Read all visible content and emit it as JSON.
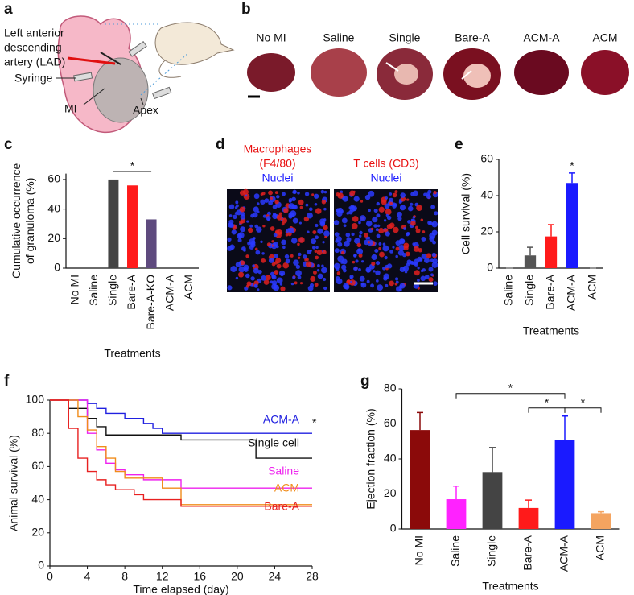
{
  "panel_labels": [
    "a",
    "b",
    "c",
    "d",
    "e",
    "f",
    "g"
  ],
  "panel_a": {
    "lad_lines": [
      "Left anterior",
      "descending",
      "artery (LAD)"
    ],
    "syringe": "Syringe",
    "mi": "MI",
    "apex": "Apex"
  },
  "panel_b": {
    "labels": [
      "No MI",
      "Saline",
      "Single",
      "Bare-A",
      "ACM-A",
      "ACM"
    ]
  },
  "panel_d": {
    "left": [
      "Macrophages",
      "(F4/80)",
      "Nuclei"
    ],
    "right": [
      "T cells (CD3)",
      "Nuclei"
    ]
  },
  "chart_data": [
    {
      "type": "bar",
      "ylabel": [
        "Cumulative occurrence",
        "of granuloma (%)"
      ],
      "xlabel": "Treatments",
      "categories": [
        "No MI",
        "Saline",
        "Single",
        "Bare-A",
        "Bare-A-KO",
        "ACM-A",
        "ACM"
      ],
      "values": [
        0,
        0,
        60,
        56,
        33,
        0,
        0
      ],
      "colors": [
        "#444444",
        "#444444",
        "#444444",
        "#ff1a1a",
        "#5e4a7e",
        "#444444",
        "#444444"
      ],
      "ylim": [
        0,
        64
      ],
      "yticks": [
        0,
        20,
        40,
        60
      ],
      "annotations": [
        {
          "between": [
            "Single",
            "Bare-A-KO"
          ],
          "text": "*"
        }
      ]
    },
    {
      "type": "bar",
      "ylabel": [
        "Cell survival (%)"
      ],
      "xlabel": "Treatments",
      "categories": [
        "Saline",
        "Single",
        "Bare-A",
        "ACM-A",
        "ACM"
      ],
      "values": [
        0,
        7,
        17.5,
        47,
        0
      ],
      "errors": [
        0,
        4.5,
        6.5,
        5.5,
        0
      ],
      "colors": [
        "#888888",
        "#555555",
        "#ff1a1a",
        "#1a1aff",
        "#888888"
      ],
      "ylim": [
        0,
        60
      ],
      "yticks": [
        0,
        20,
        40,
        60
      ],
      "annotations": [
        {
          "at": "ACM-A",
          "text": "*"
        }
      ]
    },
    {
      "type": "line",
      "step": true,
      "ylabel": [
        "Animal survival (%)"
      ],
      "xlabel": "Time elapsed (day)",
      "xlim": [
        0,
        28
      ],
      "xticks": [
        0,
        4,
        8,
        12,
        16,
        20,
        24,
        28
      ],
      "ylim": [
        0,
        100
      ],
      "yticks": [
        0,
        20,
        40,
        60,
        80,
        100
      ],
      "series": [
        {
          "name": "ACM-A",
          "color": "#2020e0",
          "x": [
            0,
            3,
            4,
            5,
            6,
            8,
            10,
            11,
            12,
            28
          ],
          "values": [
            100,
            100,
            98,
            95,
            92,
            89,
            86,
            83,
            80,
            80
          ]
        },
        {
          "name": "Single cell",
          "color": "#111111",
          "x": [
            0,
            2,
            4,
            5,
            6,
            14,
            22,
            28
          ],
          "values": [
            100,
            95,
            89,
            84,
            79,
            76,
            65,
            65
          ]
        },
        {
          "name": "Saline",
          "color": "#ee22ee",
          "x": [
            0,
            4,
            5,
            6,
            7,
            8,
            10,
            14,
            28
          ],
          "values": [
            100,
            80,
            70,
            62,
            58,
            55,
            52,
            47,
            47
          ]
        },
        {
          "name": "ACM",
          "color": "#f08c1a",
          "x": [
            0,
            3,
            4,
            5,
            6,
            7,
            8,
            12,
            14,
            28
          ],
          "values": [
            100,
            90,
            82,
            72,
            65,
            57,
            53,
            47,
            37,
            37
          ]
        },
        {
          "name": "Bare-A",
          "color": "#e82020",
          "x": [
            0,
            2,
            3,
            4,
            5,
            6,
            7,
            9,
            10,
            14,
            28
          ],
          "values": [
            100,
            83,
            65,
            57,
            52,
            49,
            46,
            43,
            40,
            36,
            36
          ]
        }
      ],
      "annotations": [
        {
          "at": "ACM-A",
          "text": "*"
        }
      ]
    },
    {
      "type": "bar",
      "ylabel": [
        "Ejection fraction (%)"
      ],
      "xlabel": "Treatments",
      "categories": [
        "No MI",
        "Saline",
        "Single",
        "Bare-A",
        "ACM-A",
        "ACM"
      ],
      "values": [
        56.5,
        17,
        32.5,
        12,
        51,
        9
      ],
      "errors": [
        10,
        7.5,
        14,
        4.5,
        13.5,
        0.8
      ],
      "colors": [
        "#8b0a0a",
        "#ff22ff",
        "#444444",
        "#ff1a1a",
        "#1a1aff",
        "#f4a460"
      ],
      "ylim": [
        0,
        80
      ],
      "yticks": [
        0,
        20,
        40,
        60,
        80
      ],
      "annotations": [
        {
          "between": [
            "Bare-A",
            "ACM-A"
          ],
          "text": "*"
        },
        {
          "between": [
            "ACM-A",
            "ACM"
          ],
          "text": "*"
        },
        {
          "between": [
            "Saline",
            "ACM-A"
          ],
          "text": "*"
        }
      ]
    }
  ]
}
